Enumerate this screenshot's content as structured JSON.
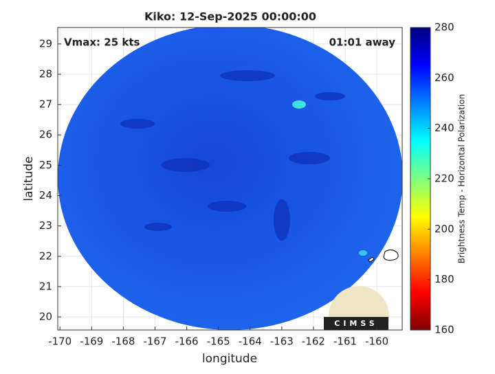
{
  "map": {
    "title": "Kiko: 12-Sep-2025 00:00:00",
    "annotations": {
      "left": "Vmax: 25 kts",
      "right": "01:01 away"
    },
    "xlabel": "longitude",
    "ylabel": "latitude",
    "xlim": [
      -170.07,
      -159.2
    ],
    "ylim": [
      19.57,
      29.54
    ],
    "xticks": [
      -170,
      -169,
      -168,
      -167,
      -166,
      -165,
      -164,
      -163,
      -162,
      -161,
      -160
    ],
    "yticks": [
      20,
      21,
      22,
      23,
      24,
      25,
      26,
      27,
      28,
      29
    ],
    "grid": true,
    "colorbar": {
      "label": "Brightness Temp - Horizontal Polarization",
      "lim": [
        160,
        280
      ],
      "ticks": [
        160,
        180,
        200,
        220,
        240,
        260,
        280
      ]
    },
    "logo": "CIMSS"
  }
}
